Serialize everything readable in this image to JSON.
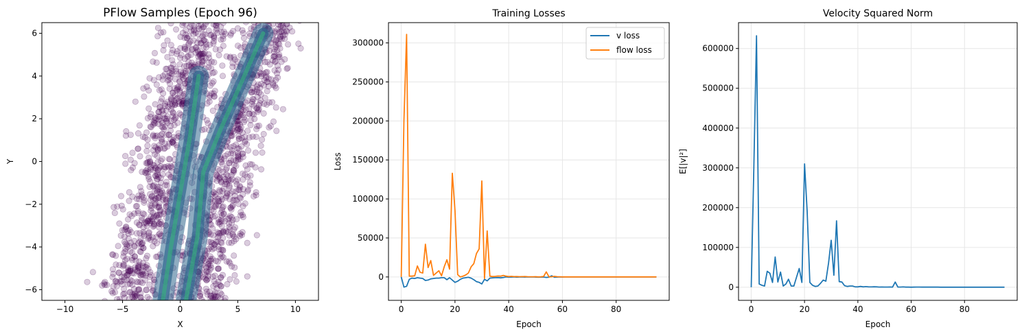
{
  "colors": {
    "v_loss": "#1f77b4",
    "flow_loss": "#ff7f0e",
    "scatter": "#440154",
    "density_mid": "#31688e",
    "density_high": "#35b779",
    "grid": "#e6e6e6"
  },
  "chart_data": [
    {
      "type": "scatter",
      "title": "PFlow Samples (Epoch 96)",
      "xlabel": "X",
      "ylabel": "Y",
      "xlim": [
        -12,
        12
      ],
      "ylim": [
        -6.5,
        6.5
      ],
      "xticks": [
        -10,
        -5,
        0,
        5,
        10
      ],
      "yticks": [
        -6,
        -4,
        -2,
        0,
        2,
        4,
        6
      ],
      "xtick_labels": [
        "−10",
        "−5",
        "0",
        "5",
        "10"
      ],
      "ytick_labels": [
        "−6",
        "−4",
        "−2",
        "0",
        "2",
        "4",
        "6"
      ],
      "grid": false,
      "legend": "none",
      "colormap": "viridis",
      "point_alpha": 0.2,
      "bands": [
        {
          "name": "left band",
          "y": [
            -6.5,
            -4,
            -2,
            0,
            2,
            4,
            6.5
          ],
          "x_center": [
            -4.5,
            -3.6,
            -2.2,
            -1.5,
            -0.6,
            0.6,
            2.2
          ],
          "half_width": 2.4
        },
        {
          "name": "right band",
          "y": [
            -6.5,
            -4,
            -2,
            0,
            2,
            4,
            6.5
          ],
          "x_center": [
            1.5,
            2.4,
            3.5,
            4.2,
            5.0,
            6.2,
            7.8
          ],
          "half_width": 2.4
        }
      ],
      "ridges": [
        {
          "x": [
            -1.5,
            -0.8,
            0.0,
            0.8,
            1.6
          ],
          "y": [
            -6.5,
            -4.0,
            -1.5,
            1.0,
            4.0
          ]
        },
        {
          "x": [
            0.5,
            1.5,
            2.0,
            3.5,
            7.2
          ],
          "y": [
            -6.5,
            -3.5,
            -0.5,
            1.5,
            6.0
          ]
        }
      ]
    },
    {
      "type": "line",
      "title": "Training Losses",
      "xlabel": "Epoch",
      "ylabel": "Loss",
      "xlim": [
        -4.75,
        99.75
      ],
      "ylim": [
        -30000,
        326000
      ],
      "xticks": [
        0,
        20,
        40,
        60,
        80
      ],
      "yticks": [
        0,
        50000,
        100000,
        150000,
        200000,
        250000,
        300000
      ],
      "ytick_labels": [
        "0",
        "50000",
        "100000",
        "150000",
        "200000",
        "250000",
        "300000"
      ],
      "grid": true,
      "legend": "upper right",
      "series": [
        {
          "name": "v loss",
          "x": [
            0,
            1,
            2,
            3,
            4,
            5,
            6,
            7,
            8,
            9,
            10,
            11,
            12,
            13,
            14,
            15,
            16,
            17,
            18,
            19,
            20,
            21,
            22,
            23,
            24,
            25,
            26,
            27,
            28,
            29,
            30,
            31,
            32,
            33,
            34,
            35,
            36,
            37,
            38,
            39,
            40,
            41,
            42,
            43,
            44,
            45,
            46,
            47,
            48,
            49,
            50,
            51,
            52,
            53,
            54,
            55,
            56,
            57,
            58,
            59,
            60,
            61,
            62,
            63,
            64,
            65,
            66,
            67,
            68,
            69,
            70,
            71,
            72,
            73,
            74,
            75,
            76,
            77,
            78,
            79,
            80,
            81,
            82,
            83,
            84,
            85,
            86,
            87,
            88,
            89,
            90,
            91,
            92,
            93,
            94,
            95
          ],
          "y": [
            0,
            -13000,
            -12000,
            -3000,
            -1500,
            -2000,
            -1000,
            -1500,
            -2000,
            -4500,
            -4000,
            -2500,
            -2000,
            -1500,
            -1500,
            -1000,
            -1000,
            -3500,
            -1000,
            -4000,
            -7000,
            -5500,
            -3000,
            -1500,
            -1000,
            -500,
            -1500,
            -3500,
            -6000,
            -7000,
            -9000,
            -3000,
            -5000,
            -1500,
            -1200,
            -1000,
            -800,
            -1200,
            -700,
            0,
            -300,
            -200,
            0,
            -300,
            -100,
            0,
            -200,
            0,
            -100,
            0,
            -200,
            -300,
            -200,
            -100,
            -600,
            -300,
            1500,
            -500,
            -200,
            0,
            -100,
            0,
            0,
            0,
            0,
            0,
            0,
            0,
            0,
            0,
            0,
            0,
            0,
            0,
            0,
            0,
            0,
            0,
            0,
            0,
            0,
            0,
            0,
            0,
            0,
            0,
            0,
            0,
            0,
            0,
            0,
            0,
            0,
            0,
            0,
            0
          ]
        },
        {
          "name": "flow loss",
          "x": [
            0,
            1,
            2,
            3,
            4,
            5,
            6,
            7,
            8,
            9,
            10,
            11,
            12,
            13,
            14,
            15,
            16,
            17,
            18,
            19,
            20,
            21,
            22,
            23,
            24,
            25,
            26,
            27,
            28,
            29,
            30,
            31,
            32,
            33,
            34,
            35,
            36,
            37,
            38,
            39,
            40,
            41,
            42,
            43,
            44,
            45,
            46,
            47,
            48,
            49,
            50,
            51,
            52,
            53,
            54,
            55,
            56,
            57,
            58,
            59,
            60,
            61,
            62,
            63,
            64,
            65,
            66,
            67,
            68,
            69,
            70,
            71,
            72,
            73,
            74,
            75,
            76,
            77,
            78,
            79,
            80,
            81,
            82,
            83,
            84,
            85,
            86,
            87,
            88,
            89,
            90,
            91,
            92,
            93,
            94,
            95
          ],
          "y": [
            0,
            200000,
            311000,
            1000,
            1000,
            1500,
            14000,
            6000,
            5000,
            42000,
            12000,
            21000,
            2000,
            5000,
            8000,
            1500,
            13000,
            22000,
            10000,
            133000,
            85000,
            3000,
            0,
            1000,
            2500,
            5000,
            13000,
            17000,
            30000,
            36000,
            123000,
            -2000,
            59000,
            1000,
            500,
            800,
            1200,
            1000,
            2000,
            1000,
            500,
            800,
            400,
            500,
            300,
            400,
            500,
            300,
            200,
            200,
            300,
            100,
            200,
            600,
            6500,
            100,
            200,
            800,
            300,
            200,
            100,
            100,
            100,
            100,
            100,
            100,
            100,
            100,
            100,
            100,
            100,
            100,
            100,
            100,
            100,
            100,
            100,
            100,
            100,
            100,
            100,
            100,
            100,
            100,
            100,
            100,
            100,
            100,
            100,
            100,
            100,
            100,
            100,
            100,
            100,
            100
          ]
        }
      ]
    },
    {
      "type": "line",
      "title": "Velocity Squared Norm",
      "xlabel": "Epoch",
      "ylabel": "E[|v|²]",
      "xlim": [
        -4.75,
        99.75
      ],
      "ylim": [
        -33000,
        665000
      ],
      "xticks": [
        0,
        20,
        40,
        60,
        80
      ],
      "yticks": [
        0,
        100000,
        200000,
        300000,
        400000,
        500000,
        600000
      ],
      "ytick_labels": [
        "0",
        "100000",
        "200000",
        "300000",
        "400000",
        "500000",
        "600000"
      ],
      "grid": true,
      "legend": "none",
      "series": [
        {
          "name": "",
          "x": [
            0,
            1,
            2,
            3,
            4,
            5,
            6,
            7,
            8,
            9,
            10,
            11,
            12,
            13,
            14,
            15,
            16,
            17,
            18,
            19,
            20,
            21,
            22,
            23,
            24,
            25,
            26,
            27,
            28,
            29,
            30,
            31,
            32,
            33,
            34,
            35,
            36,
            37,
            38,
            39,
            40,
            41,
            42,
            43,
            44,
            45,
            46,
            47,
            48,
            49,
            50,
            51,
            52,
            53,
            54,
            55,
            56,
            57,
            58,
            59,
            60,
            61,
            62,
            63,
            64,
            65,
            66,
            67,
            68,
            69,
            70,
            71,
            72,
            73,
            74,
            75,
            76,
            77,
            78,
            79,
            80,
            81,
            82,
            83,
            84,
            85,
            86,
            87,
            88,
            89,
            90,
            91,
            92,
            93,
            94,
            95
          ],
          "y": [
            0,
            300000,
            632000,
            8000,
            5000,
            3000,
            40000,
            35000,
            12000,
            76000,
            13000,
            38000,
            3000,
            8000,
            20000,
            3000,
            3000,
            25000,
            47000,
            12000,
            310000,
            190000,
            12000,
            5000,
            2000,
            3000,
            10000,
            18000,
            15000,
            60000,
            118000,
            30000,
            167000,
            14000,
            13000,
            4000,
            2000,
            3000,
            3000,
            1000,
            1000,
            2000,
            1000,
            1500,
            1000,
            800,
            1200,
            1000,
            500,
            600,
            400,
            500,
            600,
            300,
            13000,
            500,
            400,
            800,
            300,
            200,
            100,
            200,
            500,
            400,
            300,
            200,
            200,
            500,
            300,
            200,
            200,
            150,
            100,
            100,
            100,
            100,
            100,
            100,
            100,
            100,
            100,
            100,
            100,
            100,
            100,
            100,
            100,
            100,
            100,
            100,
            100,
            100,
            100,
            100,
            100,
            100
          ]
        }
      ]
    }
  ]
}
